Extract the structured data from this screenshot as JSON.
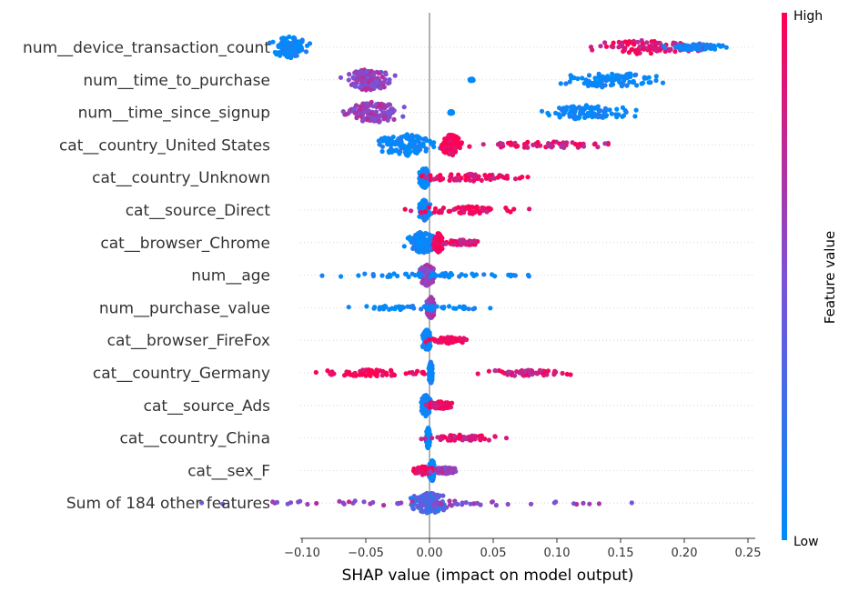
{
  "chart_data": {
    "type": "scatter",
    "subtype": "beeswarm",
    "title": "",
    "xlabel": "SHAP value (impact on model output)",
    "ylabel": "",
    "xlim": [
      -0.15,
      0.25
    ],
    "xticks": [
      -0.1,
      -0.05,
      0.0,
      0.05,
      0.1,
      0.15,
      0.2,
      0.25
    ],
    "xtick_labels": [
      "−0.10",
      "−0.05",
      "0.00",
      "0.05",
      "0.10",
      "0.15",
      "0.20",
      "0.25"
    ],
    "grid": false,
    "colorbar": {
      "title": "Feature value",
      "high_label": "High",
      "low_label": "Low",
      "low_color": "#008bfb",
      "high_color": "#ff0052"
    },
    "features": [
      {
        "name": "num__device_transaction_count",
        "clusters": [
          {
            "center": -0.11,
            "spread": 0.02,
            "color": 0.0,
            "height": 1.0
          },
          {
            "center": 0.17,
            "spread": 0.06,
            "color": 0.9,
            "height": 0.65
          },
          {
            "center": 0.21,
            "spread": 0.03,
            "color": 0.05,
            "height": 0.3
          }
        ]
      },
      {
        "name": "num__time_to_purchase",
        "clusters": [
          {
            "center": -0.048,
            "spread": 0.025,
            "color": 0.6,
            "height": 1.0
          },
          {
            "center": 0.033,
            "spread": 0.002,
            "color": 0.0,
            "height": 0.1
          },
          {
            "center": 0.14,
            "spread": 0.06,
            "color": 0.0,
            "height": 0.7
          }
        ]
      },
      {
        "name": "num__time_since_signup",
        "clusters": [
          {
            "center": -0.045,
            "spread": 0.03,
            "color": 0.6,
            "height": 1.0
          },
          {
            "center": 0.017,
            "spread": 0.002,
            "color": 0.0,
            "height": 0.1
          },
          {
            "center": 0.125,
            "spread": 0.045,
            "color": 0.0,
            "height": 0.7
          }
        ]
      },
      {
        "name": "cat__country_United States",
        "clusters": [
          {
            "center": -0.018,
            "spread": 0.03,
            "color": 0.0,
            "height": 1.0
          },
          {
            "center": 0.017,
            "spread": 0.01,
            "color": 1.0,
            "height": 1.0
          },
          {
            "center": 0.09,
            "spread": 0.08,
            "color": 0.85,
            "height": 0.3
          }
        ]
      },
      {
        "name": "cat__country_Unknown",
        "clusters": [
          {
            "center": -0.004,
            "spread": 0.005,
            "color": 0.0,
            "height": 1.0
          },
          {
            "center": 0.03,
            "spread": 0.06,
            "color": 0.9,
            "height": 0.35
          }
        ]
      },
      {
        "name": "cat__source_Direct",
        "clusters": [
          {
            "center": -0.004,
            "spread": 0.006,
            "color": 0.0,
            "height": 1.0
          },
          {
            "center": 0.03,
            "spread": 0.06,
            "color": 0.95,
            "height": 0.35
          }
        ]
      },
      {
        "name": "cat__browser_Chrome",
        "clusters": [
          {
            "center": -0.006,
            "spread": 0.015,
            "color": 0.0,
            "height": 1.0
          },
          {
            "center": 0.007,
            "spread": 0.005,
            "color": 1.0,
            "height": 0.9
          },
          {
            "center": 0.025,
            "spread": 0.025,
            "color": 0.9,
            "height": 0.25
          }
        ]
      },
      {
        "name": "num__age",
        "clusters": [
          {
            "center": -0.002,
            "spread": 0.008,
            "color": 0.6,
            "height": 1.0
          },
          {
            "center": 0.0,
            "spread": 0.125,
            "color": 0.0,
            "height": 0.2
          }
        ]
      },
      {
        "name": "num__purchase_value",
        "clusters": [
          {
            "center": 0.001,
            "spread": 0.005,
            "color": 0.6,
            "height": 1.0
          },
          {
            "center": -0.01,
            "spread": 0.07,
            "color": 0.0,
            "height": 0.2
          },
          {
            "center": 0.027,
            "spread": 0.001,
            "color": 0.0,
            "height": 0.1
          }
        ]
      },
      {
        "name": "cat__browser_FireFox",
        "clusters": [
          {
            "center": -0.002,
            "spread": 0.005,
            "color": 0.0,
            "height": 1.0
          },
          {
            "center": 0.015,
            "spread": 0.022,
            "color": 0.95,
            "height": 0.3
          }
        ]
      },
      {
        "name": "cat__country_Germany",
        "clusters": [
          {
            "center": 0.001,
            "spread": 0.002,
            "color": 0.0,
            "height": 1.0
          },
          {
            "center": -0.045,
            "spread": 0.065,
            "color": 1.0,
            "height": 0.3
          },
          {
            "center": 0.075,
            "spread": 0.05,
            "color": 0.85,
            "height": 0.3
          }
        ]
      },
      {
        "name": "cat__source_Ads",
        "clusters": [
          {
            "center": -0.003,
            "spread": 0.005,
            "color": 0.0,
            "height": 1.0
          },
          {
            "center": 0.008,
            "spread": 0.015,
            "color": 0.9,
            "height": 0.35
          }
        ]
      },
      {
        "name": "cat__country_China",
        "clusters": [
          {
            "center": -0.001,
            "spread": 0.002,
            "color": 0.0,
            "height": 1.0
          },
          {
            "center": 0.025,
            "spread": 0.04,
            "color": 0.9,
            "height": 0.3
          }
        ]
      },
      {
        "name": "cat__sex_F",
        "clusters": [
          {
            "center": 0.002,
            "spread": 0.003,
            "color": 0.0,
            "height": 1.0
          },
          {
            "center": -0.005,
            "spread": 0.01,
            "color": 1.0,
            "height": 0.4
          },
          {
            "center": 0.012,
            "spread": 0.015,
            "color": 0.6,
            "height": 0.3
          }
        ]
      },
      {
        "name": "Sum of 184 other features",
        "clusters": [
          {
            "center": 0.0,
            "spread": 0.02,
            "color": 0.3,
            "height": 1.0
          },
          {
            "center": 0.0,
            "spread": 0.21,
            "color": 0.6,
            "height": 0.25
          }
        ]
      }
    ]
  }
}
